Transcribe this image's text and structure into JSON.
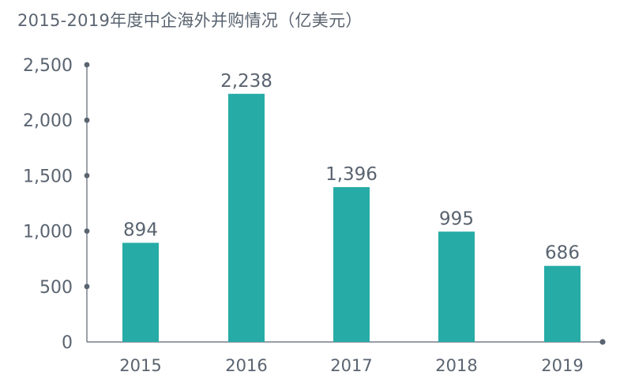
{
  "title": "2015-2019年度中企海外并购情况（亿美元）",
  "colors": {
    "bar": "#26ABA6",
    "axis": "#5a6470",
    "text": "#5a6470"
  },
  "chart_data": {
    "type": "bar",
    "title": "2015-2019年度中企海外并购情况（亿美元）",
    "categories": [
      "2015",
      "2016",
      "2017",
      "2018",
      "2019"
    ],
    "values": [
      894,
      2238,
      1396,
      995,
      686
    ],
    "data_labels": [
      "894",
      "2,238",
      "1,396",
      "995",
      "686"
    ],
    "yticks": [
      0,
      500,
      1000,
      1500,
      2000,
      2500
    ],
    "ytick_labels": [
      "0",
      "500",
      "1,000",
      "1,500",
      "2,000",
      "2,500"
    ],
    "ylim": [
      0,
      2500
    ],
    "xlabel": "",
    "ylabel": "",
    "grid": false,
    "legend": "none"
  }
}
